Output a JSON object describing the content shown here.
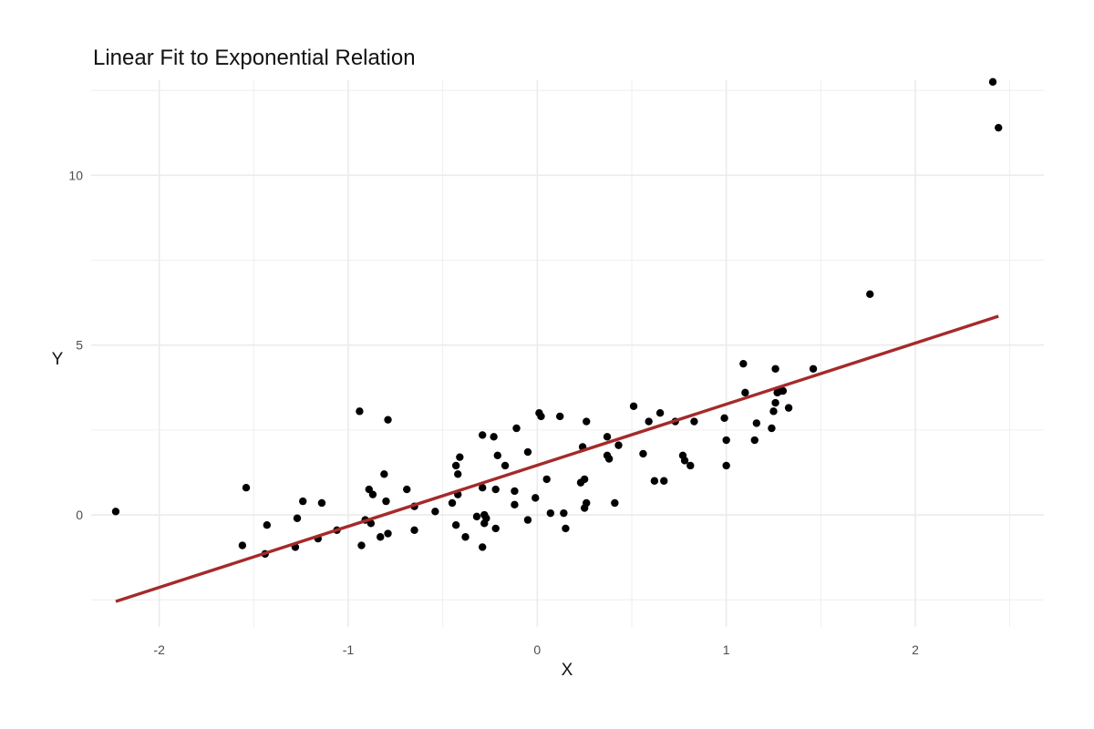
{
  "chart_data": {
    "type": "scatter",
    "title": "Linear Fit to Exponential Relation",
    "xlabel": "X",
    "ylabel": "Y",
    "xlim": [
      -2.36,
      2.68
    ],
    "ylim": [
      -3.3,
      12.8
    ],
    "xticks": [
      -2,
      -1,
      0,
      1,
      2
    ],
    "yticks": [
      0,
      5,
      10
    ],
    "grid": true,
    "colors": {
      "points": "#000000",
      "fit_line": "#a52a2a",
      "grid": "#ebebeb"
    },
    "series": [
      {
        "type": "scatter",
        "points": [
          [
            -2.23,
            0.1
          ],
          [
            -1.56,
            -0.9
          ],
          [
            -1.54,
            0.8
          ],
          [
            -1.44,
            -1.15
          ],
          [
            -1.43,
            -0.3
          ],
          [
            -1.28,
            -0.95
          ],
          [
            -1.27,
            -0.1
          ],
          [
            -1.24,
            0.4
          ],
          [
            -1.16,
            -0.7
          ],
          [
            -1.14,
            0.35
          ],
          [
            -1.06,
            -0.45
          ],
          [
            -0.94,
            3.05
          ],
          [
            -0.93,
            -0.9
          ],
          [
            -0.91,
            -0.15
          ],
          [
            -0.89,
            0.75
          ],
          [
            -0.88,
            -0.25
          ],
          [
            -0.87,
            0.6
          ],
          [
            -0.83,
            -0.65
          ],
          [
            -0.81,
            1.2
          ],
          [
            -0.8,
            0.4
          ],
          [
            -0.79,
            -0.55
          ],
          [
            -0.79,
            2.8
          ],
          [
            -0.69,
            0.75
          ],
          [
            -0.65,
            0.25
          ],
          [
            -0.65,
            -0.45
          ],
          [
            -0.54,
            0.1
          ],
          [
            -0.45,
            0.35
          ],
          [
            -0.43,
            1.45
          ],
          [
            -0.43,
            -0.3
          ],
          [
            -0.42,
            0.6
          ],
          [
            -0.42,
            1.2
          ],
          [
            -0.41,
            1.7
          ],
          [
            -0.38,
            -0.65
          ],
          [
            -0.32,
            -0.05
          ],
          [
            -0.29,
            2.35
          ],
          [
            -0.29,
            -0.95
          ],
          [
            -0.29,
            0.8
          ],
          [
            -0.28,
            -0.25
          ],
          [
            -0.28,
            0.0
          ],
          [
            -0.27,
            -0.1
          ],
          [
            -0.23,
            2.3
          ],
          [
            -0.22,
            0.75
          ],
          [
            -0.22,
            -0.4
          ],
          [
            -0.21,
            1.75
          ],
          [
            -0.17,
            1.45
          ],
          [
            -0.12,
            0.7
          ],
          [
            -0.12,
            0.3
          ],
          [
            -0.11,
            2.55
          ],
          [
            -0.05,
            -0.15
          ],
          [
            -0.05,
            1.85
          ],
          [
            -0.01,
            0.5
          ],
          [
            0.01,
            3.0
          ],
          [
            0.02,
            2.9
          ],
          [
            0.05,
            1.05
          ],
          [
            0.07,
            0.05
          ],
          [
            0.12,
            2.9
          ],
          [
            0.14,
            0.05
          ],
          [
            0.15,
            -0.4
          ],
          [
            0.23,
            0.95
          ],
          [
            0.24,
            2.0
          ],
          [
            0.25,
            1.05
          ],
          [
            0.25,
            0.2
          ],
          [
            0.26,
            0.35
          ],
          [
            0.26,
            2.75
          ],
          [
            0.37,
            1.75
          ],
          [
            0.37,
            2.3
          ],
          [
            0.38,
            1.65
          ],
          [
            0.41,
            0.35
          ],
          [
            0.43,
            2.05
          ],
          [
            0.51,
            3.2
          ],
          [
            0.56,
            1.8
          ],
          [
            0.59,
            2.75
          ],
          [
            0.62,
            1.0
          ],
          [
            0.65,
            3.0
          ],
          [
            0.67,
            1.0
          ],
          [
            0.73,
            2.75
          ],
          [
            0.77,
            1.75
          ],
          [
            0.78,
            1.6
          ],
          [
            0.81,
            1.45
          ],
          [
            0.83,
            2.75
          ],
          [
            0.99,
            2.85
          ],
          [
            1.0,
            2.2
          ],
          [
            1.0,
            1.45
          ],
          [
            1.09,
            4.45
          ],
          [
            1.1,
            3.6
          ],
          [
            1.15,
            2.2
          ],
          [
            1.16,
            2.7
          ],
          [
            1.24,
            2.55
          ],
          [
            1.25,
            3.05
          ],
          [
            1.26,
            3.3
          ],
          [
            1.26,
            4.3
          ],
          [
            1.27,
            3.6
          ],
          [
            1.29,
            3.65
          ],
          [
            1.3,
            3.65
          ],
          [
            1.33,
            3.15
          ],
          [
            1.46,
            4.3
          ],
          [
            1.76,
            6.5
          ],
          [
            2.41,
            12.75
          ],
          [
            2.44,
            11.4
          ]
        ]
      },
      {
        "type": "line",
        "points": [
          [
            -2.23,
            -2.55
          ],
          [
            2.44,
            5.85
          ]
        ]
      }
    ]
  }
}
